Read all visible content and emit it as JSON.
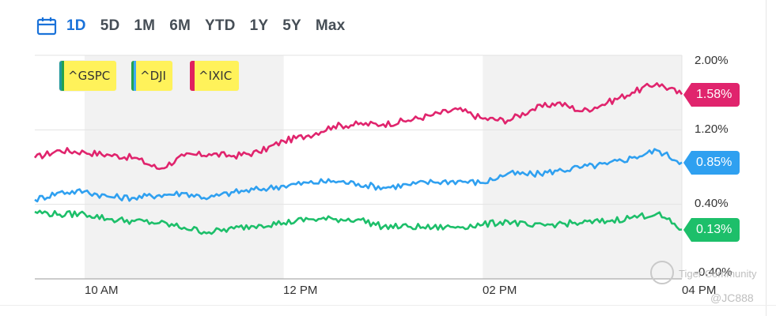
{
  "range_tabs": [
    "1D",
    "5D",
    "1M",
    "6M",
    "YTD",
    "1Y",
    "5Y",
    "Max"
  ],
  "active_tab": "1D",
  "legend": [
    {
      "label": "^GSPC",
      "color1": "#1f9aa0",
      "color2": "#23a24d"
    },
    {
      "label": "^DJI",
      "color1": "#23a24d",
      "color2": "#3da9f5"
    },
    {
      "label": "^IXIC",
      "color1": "#e0205f",
      "color2": "#e0205f"
    }
  ],
  "badges": [
    {
      "label": "1.58%",
      "color": "#e0246d"
    },
    {
      "label": "0.85%",
      "color": "#2fa0f0"
    },
    {
      "label": "0.13%",
      "color": "#1dbf6a"
    }
  ],
  "watermark": {
    "text": "Tiger Community",
    "handle": "@JC888"
  },
  "chart_data": {
    "type": "line",
    "x_ticks": [
      "10 AM",
      "12 PM",
      "02 PM",
      "04 PM"
    ],
    "y_ticks": [
      "2.00%",
      "1.20%",
      "0.40%",
      "-0.40%"
    ],
    "ylim": [
      -0.4,
      2.0
    ],
    "grid": true,
    "legend_position": "top-left",
    "x": [
      "09:30",
      "09:45",
      "10:00",
      "10:15",
      "10:30",
      "10:45",
      "11:00",
      "11:15",
      "11:30",
      "11:45",
      "12:00",
      "12:15",
      "12:30",
      "12:45",
      "13:00",
      "13:15",
      "13:30",
      "13:45",
      "14:00",
      "14:15",
      "14:30",
      "14:45",
      "15:00",
      "15:15",
      "15:30",
      "15:45",
      "16:00"
    ],
    "series": [
      {
        "color": "#e0246d",
        "values": [
          0.9,
          0.98,
          0.96,
          0.93,
          0.9,
          0.78,
          0.92,
          0.94,
          0.92,
          0.96,
          1.08,
          1.14,
          1.24,
          1.26,
          1.26,
          1.3,
          1.36,
          1.42,
          1.32,
          1.3,
          1.42,
          1.49,
          1.4,
          1.49,
          1.6,
          1.7,
          1.58
        ]
      },
      {
        "color": "#2fa0f0",
        "values": [
          0.45,
          0.53,
          0.54,
          0.48,
          0.47,
          0.5,
          0.52,
          0.47,
          0.53,
          0.56,
          0.6,
          0.63,
          0.65,
          0.62,
          0.58,
          0.61,
          0.64,
          0.65,
          0.63,
          0.73,
          0.72,
          0.76,
          0.8,
          0.83,
          0.9,
          0.98,
          0.85
        ]
      },
      {
        "color": "#1dbf6a",
        "values": [
          0.32,
          0.29,
          0.3,
          0.24,
          0.22,
          0.2,
          0.15,
          0.1,
          0.14,
          0.18,
          0.2,
          0.24,
          0.24,
          0.24,
          0.16,
          0.16,
          0.15,
          0.16,
          0.18,
          0.22,
          0.16,
          0.19,
          0.2,
          0.22,
          0.26,
          0.3,
          0.13
        ]
      }
    ]
  }
}
